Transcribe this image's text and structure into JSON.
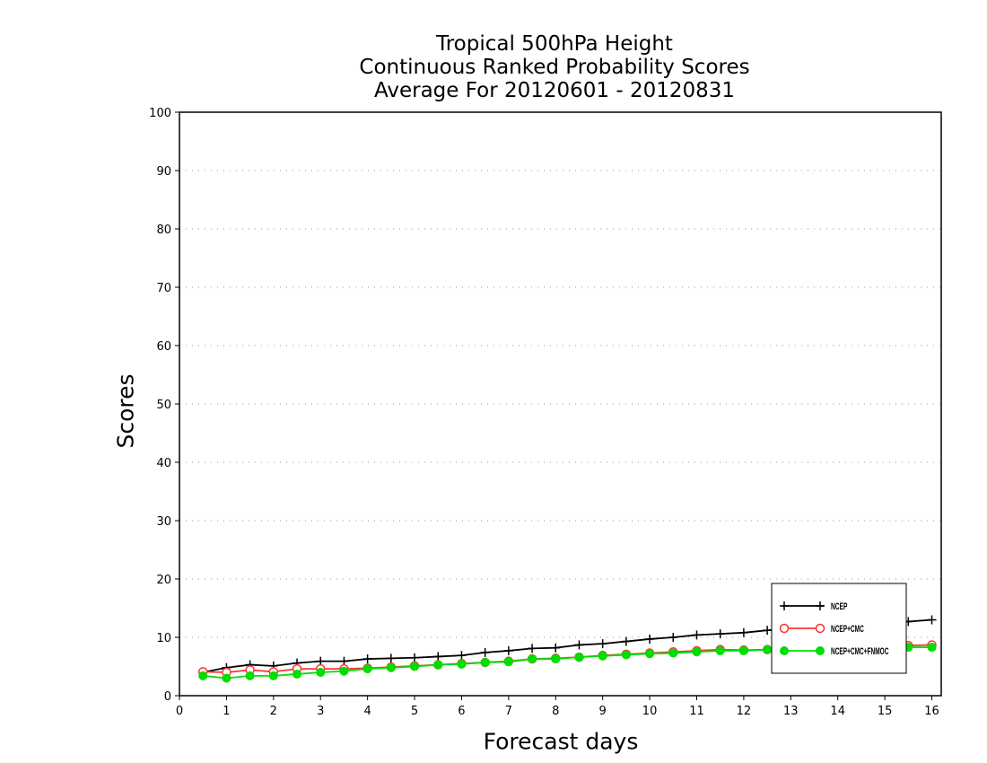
{
  "chart_data": {
    "type": "line",
    "title": [
      "Tropical 500hPa Height",
      "Continuous Ranked Probability Scores",
      "Average For 20120601 - 20120831"
    ],
    "xlabel": "Forecast days",
    "ylabel": "Scores",
    "xlim": [
      0,
      16.2
    ],
    "ylim": [
      0,
      100
    ],
    "xticks": [
      0,
      1,
      2,
      3,
      4,
      5,
      6,
      7,
      8,
      9,
      10,
      11,
      12,
      13,
      14,
      15,
      16
    ],
    "yticks": [
      0,
      10,
      20,
      30,
      40,
      50,
      60,
      70,
      80,
      90,
      100
    ],
    "grid": "horizontal dotted",
    "legend_position": "bottom-right",
    "x": [
      0.5,
      1,
      1.5,
      2,
      2.5,
      3,
      3.5,
      4,
      4.5,
      5,
      5.5,
      6,
      6.5,
      7,
      7.5,
      8,
      8.5,
      9,
      9.5,
      10,
      10.5,
      11,
      11.5,
      12,
      12.5,
      13,
      13.5,
      14,
      14.5,
      15,
      15.5,
      16
    ],
    "series": [
      {
        "name": "NCEP",
        "color": "#000000",
        "marker": "plus",
        "values": [
          4.0,
          4.8,
          5.3,
          5.1,
          5.6,
          5.9,
          5.9,
          6.3,
          6.4,
          6.5,
          6.7,
          6.9,
          7.4,
          7.7,
          8.1,
          8.2,
          8.7,
          8.9,
          9.3,
          9.7,
          10.0,
          10.4,
          10.6,
          10.8,
          11.2,
          11.5,
          11.7,
          11.9,
          12.1,
          12.4,
          12.7,
          13.0
        ]
      },
      {
        "name": "NCEP+CMC",
        "color": "#ff3333",
        "marker": "open-circle",
        "values": [
          4.1,
          4.0,
          4.4,
          4.1,
          4.6,
          4.6,
          4.6,
          4.7,
          4.9,
          5.1,
          5.3,
          5.5,
          5.7,
          5.9,
          6.3,
          6.4,
          6.6,
          6.9,
          7.1,
          7.3,
          7.5,
          7.7,
          7.9,
          7.8,
          7.9,
          8.1,
          8.1,
          8.2,
          8.3,
          8.5,
          8.6,
          8.7
        ]
      },
      {
        "name": "NCEP+CMC+FNMOC",
        "color": "#00dd00",
        "marker": "filled-circle",
        "values": [
          3.4,
          3.0,
          3.4,
          3.4,
          3.7,
          4.0,
          4.2,
          4.6,
          4.8,
          5.0,
          5.3,
          5.4,
          5.7,
          5.8,
          6.3,
          6.3,
          6.6,
          6.8,
          7.0,
          7.2,
          7.3,
          7.5,
          7.7,
          7.7,
          7.9,
          7.9,
          7.9,
          8.0,
          8.1,
          8.2,
          8.3,
          8.3
        ]
      }
    ]
  }
}
